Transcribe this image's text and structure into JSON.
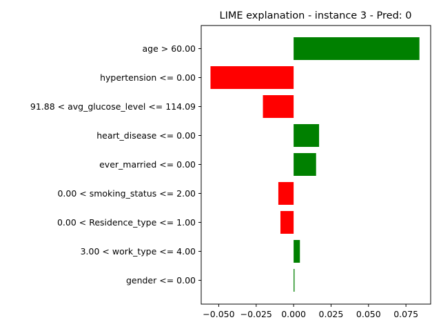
{
  "chart_data": {
    "type": "bar",
    "orientation": "horizontal",
    "title": "LIME explanation - instance 3 - Pred: 0",
    "xlabel": "",
    "ylabel": "",
    "categories": [
      "age > 60.00",
      "hypertension <= 0.00",
      "91.88 < avg_glucose_level <= 114.09",
      "heart_disease <= 0.00",
      "ever_married <= 0.00",
      "0.00 < smoking_status <= 2.00",
      "0.00 < Residence_type <= 1.00",
      "3.00 < work_type <= 4.00",
      "gender <= 0.00"
    ],
    "values": [
      0.084,
      -0.0555,
      -0.0205,
      0.017,
      0.015,
      -0.0102,
      -0.0088,
      0.0042,
      0.0006
    ],
    "xlim": [
      -0.0617,
      0.0915
    ],
    "xticks": [
      -0.05,
      -0.025,
      0.0,
      0.025,
      0.05,
      0.075
    ],
    "xtick_labels": [
      "−0.050",
      "−0.025",
      "0.000",
      "0.025",
      "0.050",
      "0.075"
    ],
    "colors": {
      "positive": "#008000",
      "negative": "#ff0000"
    },
    "grid": false,
    "legend": "none"
  }
}
